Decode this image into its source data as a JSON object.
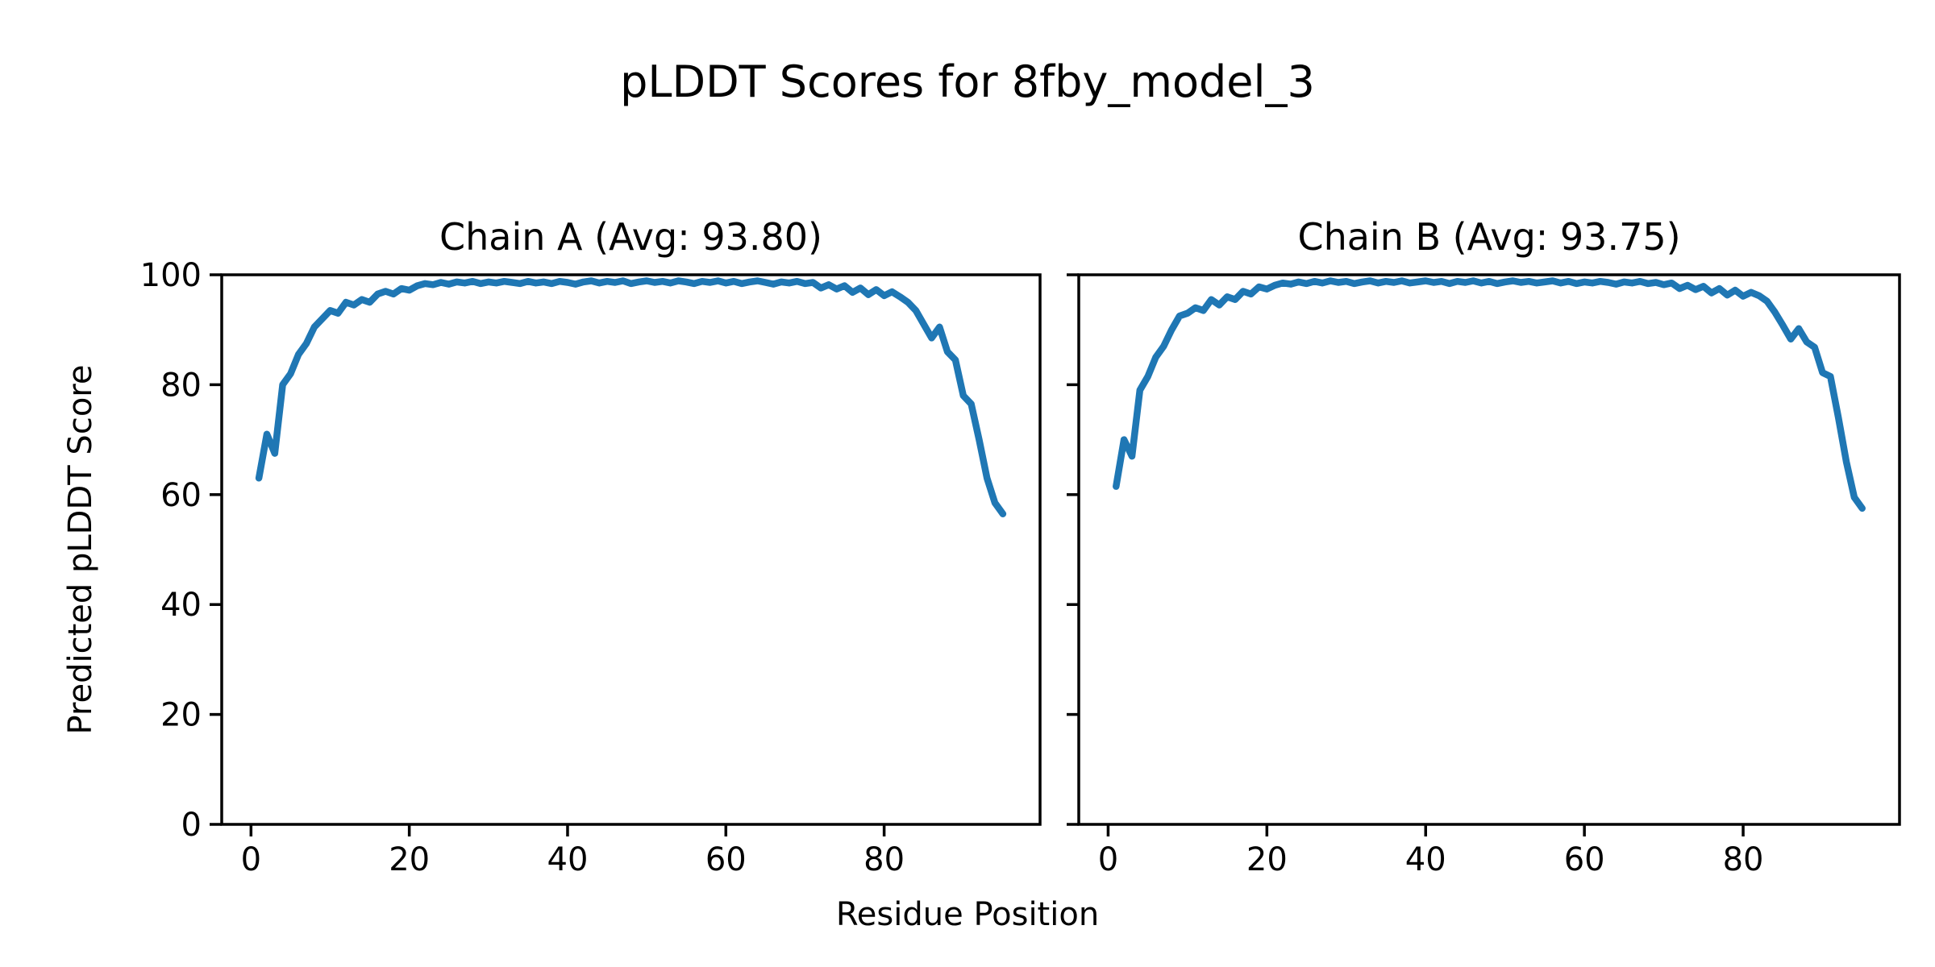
{
  "title": "pLDDT Scores for 8fby_model_3",
  "xlabel": "Residue Position",
  "ylabel": "Predicted pLDDT Score",
  "colors": {
    "line": "#1f77b4",
    "text": "#000000",
    "spine": "#000000",
    "background": "#ffffff"
  },
  "chart_data": [
    {
      "type": "line",
      "title": "Chain A (Avg: 93.80)",
      "chain": "A",
      "avg": 93.8,
      "x_start": 1,
      "xlim": [
        -3.7,
        99.7
      ],
      "ylim": [
        0,
        100
      ],
      "xticks": [
        0,
        20,
        40,
        60,
        80
      ],
      "yticks": [
        0,
        20,
        40,
        60,
        80,
        100
      ],
      "show_ytick_labels": true,
      "grid": false,
      "legend": "none",
      "values": [
        63.0,
        71.0,
        67.5,
        80.0,
        82.0,
        85.5,
        87.5,
        90.5,
        92.0,
        93.5,
        93.0,
        95.0,
        94.5,
        95.5,
        95.0,
        96.5,
        97.0,
        96.5,
        97.5,
        97.2,
        98.0,
        98.4,
        98.2,
        98.6,
        98.3,
        98.7,
        98.5,
        98.8,
        98.4,
        98.7,
        98.5,
        98.8,
        98.6,
        98.4,
        98.8,
        98.5,
        98.7,
        98.4,
        98.8,
        98.6,
        98.3,
        98.7,
        98.9,
        98.5,
        98.8,
        98.6,
        98.9,
        98.4,
        98.7,
        98.9,
        98.6,
        98.8,
        98.5,
        98.9,
        98.7,
        98.4,
        98.8,
        98.6,
        98.9,
        98.5,
        98.8,
        98.4,
        98.7,
        98.9,
        98.6,
        98.3,
        98.7,
        98.5,
        98.8,
        98.4,
        98.6,
        97.6,
        98.2,
        97.4,
        98.0,
        96.8,
        97.6,
        96.4,
        97.3,
        96.2,
        96.9,
        96.0,
        95.0,
        93.5,
        91.0,
        88.5,
        90.5,
        86.0,
        84.5,
        78.0,
        76.5,
        70.0,
        63.0,
        58.5,
        56.5
      ]
    },
    {
      "type": "line",
      "title": "Chain B (Avg: 93.75)",
      "chain": "B",
      "avg": 93.75,
      "x_start": 1,
      "xlim": [
        -3.7,
        99.7
      ],
      "ylim": [
        0,
        100
      ],
      "xticks": [
        0,
        20,
        40,
        60,
        80
      ],
      "yticks": [
        0,
        20,
        40,
        60,
        80,
        100
      ],
      "show_ytick_labels": false,
      "grid": false,
      "legend": "none",
      "values": [
        61.5,
        70.0,
        67.0,
        79.0,
        81.5,
        85.0,
        87.0,
        90.0,
        92.5,
        93.0,
        94.0,
        93.5,
        95.5,
        94.5,
        96.0,
        95.5,
        97.0,
        96.5,
        97.8,
        97.4,
        98.1,
        98.5,
        98.3,
        98.7,
        98.4,
        98.8,
        98.5,
        98.9,
        98.6,
        98.8,
        98.4,
        98.7,
        98.9,
        98.5,
        98.8,
        98.6,
        98.9,
        98.5,
        98.7,
        98.9,
        98.6,
        98.8,
        98.4,
        98.8,
        98.6,
        98.9,
        98.5,
        98.8,
        98.4,
        98.7,
        98.9,
        98.6,
        98.8,
        98.5,
        98.7,
        98.9,
        98.5,
        98.8,
        98.4,
        98.7,
        98.5,
        98.8,
        98.6,
        98.3,
        98.7,
        98.5,
        98.8,
        98.4,
        98.6,
        98.2,
        98.5,
        97.5,
        98.1,
        97.3,
        97.9,
        96.7,
        97.5,
        96.3,
        97.2,
        96.1,
        96.8,
        96.2,
        95.2,
        93.2,
        90.8,
        88.3,
        90.2,
        87.8,
        86.8,
        82.2,
        81.5,
        74.0,
        66.0,
        59.5,
        57.5
      ]
    }
  ]
}
